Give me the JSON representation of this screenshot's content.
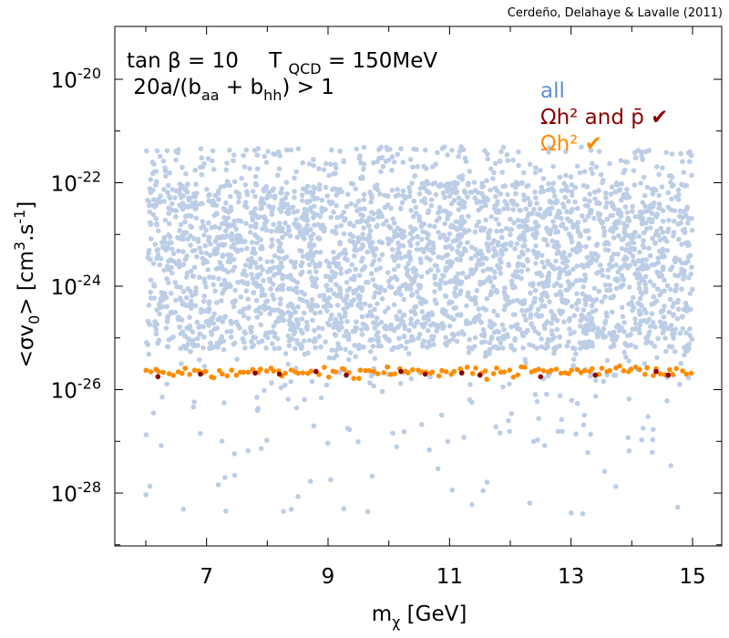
{
  "chart_data": {
    "type": "scatter",
    "title": "",
    "credit": "Cerdeño, Delahaye & Lavalle (2011)",
    "annotation": {
      "line1_a": "tan β = 10",
      "line1_b_main": "T",
      "line1_b_sub": "QCD",
      "line1_b_rest": " = 150MeV",
      "line2_main": " 20a/(b",
      "line2_sub1": "aa",
      "line2_mid": " + b",
      "line2_sub2": "hh",
      "line2_rest": ") > 1"
    },
    "xlabel": {
      "main": "m",
      "sub": "χ",
      "rest": " [GeV]"
    },
    "ylabel": {
      "a": "<σv",
      "sub": "0",
      "b": "> [cm",
      "sup1": "3",
      "c": ".s",
      "sup2": "-1",
      "d": "]"
    },
    "x_scale": "linear",
    "y_scale": "log",
    "xlim": [
      5.5,
      15.5
    ],
    "ylim_log10": [
      -29.0,
      -19.1
    ],
    "x_ticks": [
      7,
      9,
      11,
      13,
      15
    ],
    "x_tick_labels": [
      "7",
      "9",
      "11",
      "13",
      "15"
    ],
    "y_ticks_log10": [
      -20,
      -22,
      -24,
      -26,
      -28
    ],
    "y_tick_labels": [
      {
        "base": "10",
        "exp": "-20"
      },
      {
        "base": "10",
        "exp": "-22"
      },
      {
        "base": "10",
        "exp": "-24"
      },
      {
        "base": "10",
        "exp": "-26"
      },
      {
        "base": "10",
        "exp": "-28"
      }
    ],
    "legend": {
      "position": "top-right",
      "entries": [
        {
          "label": "all",
          "color": "#5b8fd6"
        },
        {
          "label": "Ωh² and p̄ ✔",
          "color": "#8b0000"
        },
        {
          "label": "Ωh² ✔",
          "color": "#ff8c00"
        }
      ]
    },
    "series": [
      {
        "name": "all",
        "color": "#bccde6",
        "x_range": [
          6.0,
          15.0
        ],
        "log10_y_range": [
          -28.4,
          -21.3
        ],
        "log10_y_dense_core": [
          -25.2,
          -22.0
        ],
        "approx_points": 3200,
        "note": "dense uniform cloud of random scan points, sparser tail below 1e-26"
      },
      {
        "name": "Ωh² ✔",
        "color": "#ff8c00",
        "x_range": [
          6.0,
          15.0
        ],
        "log10_y_center": -25.65,
        "log10_y_spread": 0.12,
        "approx_points": 130
      },
      {
        "name": "Ωh² and p̄ ✔",
        "color": "#8b0000",
        "points": [
          [
            6.2,
            -25.75
          ],
          [
            6.9,
            -25.7
          ],
          [
            7.8,
            -25.68
          ],
          [
            8.2,
            -25.7
          ],
          [
            8.8,
            -25.65
          ],
          [
            9.3,
            -25.72
          ],
          [
            10.2,
            -25.65
          ],
          [
            10.6,
            -25.7
          ],
          [
            11.2,
            -25.68
          ],
          [
            11.5,
            -25.72
          ],
          [
            12.5,
            -25.75
          ],
          [
            13.4,
            -25.72
          ],
          [
            14.4,
            -25.65
          ],
          [
            14.6,
            -25.72
          ]
        ]
      }
    ]
  }
}
